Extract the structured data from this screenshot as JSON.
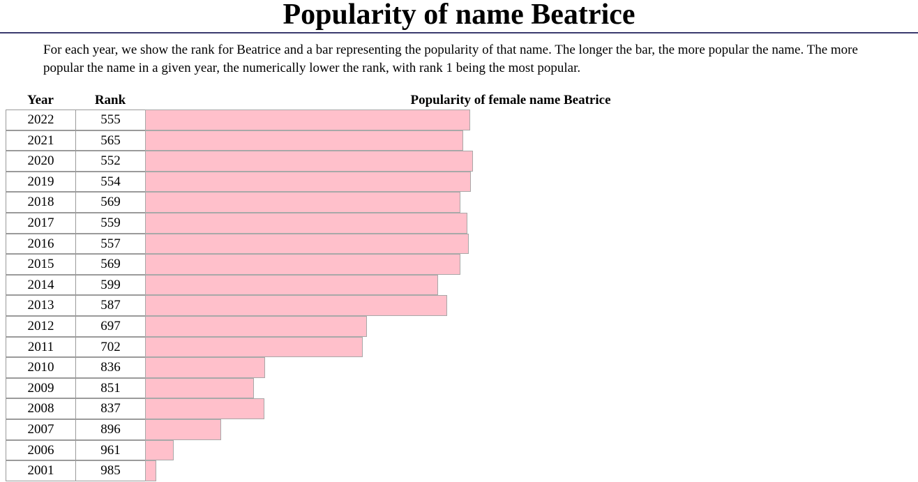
{
  "page": {
    "title": "Popularity of name Beatrice",
    "intro": "For each year, we show the rank for Beatrice and a bar representing the popularity of that name. The longer the bar, the more popular the name. The more popular the name in a given year, the numerically lower the rank, with rank 1 being the most popular."
  },
  "colors": {
    "bar_fill": "#ffc0cb",
    "title_rule": "#3a3a6e"
  },
  "chart_data": {
    "type": "bar",
    "title": "Popularity of female name Beatrice",
    "columns": [
      "Year",
      "Rank"
    ],
    "categories": [
      "2022",
      "2021",
      "2020",
      "2019",
      "2018",
      "2017",
      "2016",
      "2015",
      "2014",
      "2013",
      "2012",
      "2011",
      "2010",
      "2009",
      "2008",
      "2007",
      "2006",
      "2001"
    ],
    "values": [
      555,
      565,
      552,
      554,
      569,
      559,
      557,
      569,
      599,
      587,
      697,
      702,
      836,
      851,
      837,
      896,
      961,
      985
    ],
    "rank_range": [
      1,
      1000
    ]
  }
}
